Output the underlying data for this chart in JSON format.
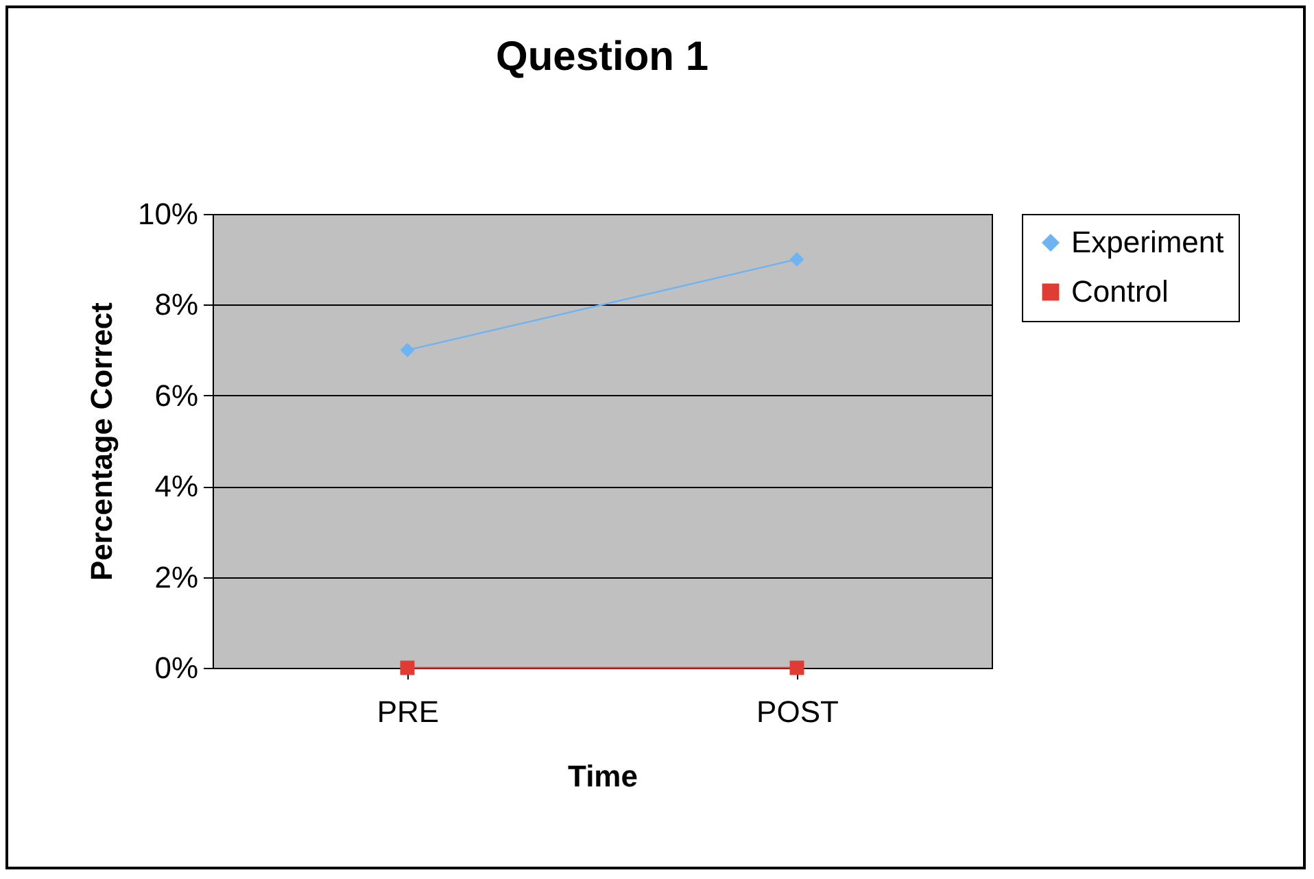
{
  "chart_data": {
    "type": "line",
    "title": "Question 1",
    "xlabel": "Time",
    "ylabel": "Percentage Correct",
    "categories": [
      "PRE",
      "POST"
    ],
    "series": [
      {
        "name": "Experiment",
        "color": "#6fb4f2",
        "values": [
          7,
          9
        ],
        "marker": "diamond"
      },
      {
        "name": "Control",
        "color": "#e03c34",
        "values": [
          0,
          0
        ],
        "marker": "square"
      }
    ],
    "ylim": [
      0,
      10
    ],
    "yticks": [
      {
        "value": 0,
        "label": "0%"
      },
      {
        "value": 2,
        "label": "2%"
      },
      {
        "value": 4,
        "label": "4%"
      },
      {
        "value": 6,
        "label": "6%"
      },
      {
        "value": 8,
        "label": "8%"
      },
      {
        "value": 10,
        "label": "10%"
      }
    ],
    "grid": "y",
    "legend": "right",
    "line_style": "solid"
  }
}
